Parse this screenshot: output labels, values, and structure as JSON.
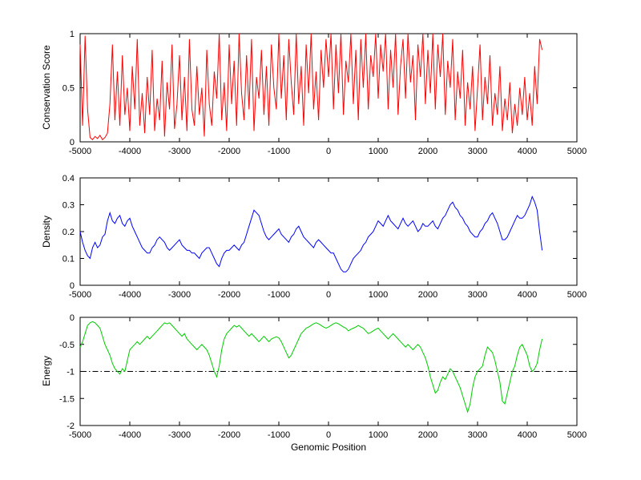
{
  "figure": {
    "background": "#ffffff",
    "xlabel": "Genomic Position"
  },
  "chart_data": [
    {
      "type": "line",
      "name": "conservation-score",
      "title": "",
      "ylabel": "Conservation Score",
      "xlabel": "",
      "xlim": [
        -5000,
        5000
      ],
      "ylim": [
        0,
        1
      ],
      "xticks": [
        -5000,
        -4000,
        -3000,
        -2000,
        -1000,
        0,
        1000,
        2000,
        3000,
        4000,
        5000
      ],
      "yticks": [
        0,
        0.5,
        1
      ],
      "line_color": "#ff0000",
      "x_start": -5000,
      "x_step": 50,
      "y": [
        0.9,
        0.15,
        0.98,
        0.3,
        0.04,
        0.02,
        0.05,
        0.03,
        0.06,
        0.02,
        0.04,
        0.08,
        0.35,
        0.9,
        0.2,
        0.65,
        0.15,
        0.8,
        0.25,
        0.5,
        0.1,
        0.7,
        0.3,
        0.95,
        0.15,
        0.45,
        0.08,
        0.6,
        0.25,
        0.85,
        0.1,
        0.4,
        0.2,
        0.75,
        0.05,
        0.55,
        0.3,
        0.9,
        0.12,
        0.35,
        0.8,
        0.2,
        0.6,
        0.1,
        0.95,
        0.3,
        0.15,
        0.7,
        0.25,
        0.5,
        0.05,
        0.85,
        0.35,
        0.15,
        0.65,
        0.4,
        1,
        0.2,
        0.55,
        0.1,
        0.9,
        0.35,
        0.75,
        0.15,
        1,
        0.45,
        0.2,
        0.8,
        0.3,
        0.95,
        0.1,
        0.6,
        0.4,
        0.85,
        0.25,
        0.7,
        0.15,
        0.9,
        0.5,
        0.3,
        1,
        0.4,
        0.8,
        0.2,
        0.95,
        0.55,
        0.25,
        1,
        0.35,
        0.7,
        0.15,
        0.9,
        0.45,
        1,
        0.3,
        0.65,
        0.2,
        0.85,
        0.5,
        0.95,
        0.6,
        1,
        0.3,
        0.9,
        0.45,
        1,
        0.25,
        0.75,
        0.55,
        1,
        0.35,
        0.85,
        0.2,
        0.95,
        0.5,
        1,
        0.3,
        0.8,
        0.6,
        1,
        0.4,
        0.9,
        0.65,
        1,
        0.3,
        0.85,
        0.5,
        1,
        0.25,
        0.7,
        0.95,
        0.4,
        1,
        0.55,
        0.8,
        0.2,
        0.9,
        0.6,
        1,
        0.35,
        0.85,
        0.45,
        1,
        0.3,
        0.9,
        0.6,
        1,
        0.25,
        0.75,
        0.5,
        0.95,
        0.2,
        0.65,
        0.4,
        0.85,
        0.15,
        0.55,
        0.3,
        0.7,
        0.1,
        0.5,
        0.9,
        0.2,
        0.6,
        0.35,
        0.8,
        0.15,
        0.45,
        0.25,
        0.7,
        0.1,
        0.4,
        0.2,
        0.55,
        0.08,
        0.35,
        0.15,
        0.5,
        0.25,
        0.6,
        0.2,
        0.45,
        0.15,
        0.7,
        0.35,
        0.95,
        0.85
      ]
    },
    {
      "type": "line",
      "name": "density",
      "title": "",
      "ylabel": "Density",
      "xlabel": "",
      "xlim": [
        -5000,
        5000
      ],
      "ylim": [
        0,
        0.4
      ],
      "xticks": [
        -5000,
        -4000,
        -3000,
        -2000,
        -1000,
        0,
        1000,
        2000,
        3000,
        4000,
        5000
      ],
      "yticks": [
        0,
        0.1,
        0.2,
        0.3,
        0.4
      ],
      "line_color": "#0000ff",
      "x_start": -5000,
      "x_step": 50,
      "y": [
        0.2,
        0.16,
        0.13,
        0.11,
        0.1,
        0.14,
        0.16,
        0.14,
        0.15,
        0.18,
        0.19,
        0.24,
        0.27,
        0.24,
        0.23,
        0.25,
        0.26,
        0.23,
        0.22,
        0.24,
        0.25,
        0.22,
        0.2,
        0.18,
        0.16,
        0.14,
        0.13,
        0.12,
        0.12,
        0.14,
        0.15,
        0.17,
        0.18,
        0.17,
        0.16,
        0.14,
        0.13,
        0.14,
        0.15,
        0.16,
        0.17,
        0.15,
        0.14,
        0.13,
        0.13,
        0.12,
        0.12,
        0.11,
        0.1,
        0.12,
        0.13,
        0.14,
        0.14,
        0.12,
        0.1,
        0.08,
        0.07,
        0.1,
        0.12,
        0.13,
        0.13,
        0.14,
        0.15,
        0.14,
        0.13,
        0.15,
        0.16,
        0.19,
        0.22,
        0.25,
        0.28,
        0.27,
        0.26,
        0.23,
        0.2,
        0.18,
        0.17,
        0.18,
        0.19,
        0.2,
        0.21,
        0.19,
        0.18,
        0.17,
        0.16,
        0.18,
        0.19,
        0.21,
        0.22,
        0.2,
        0.18,
        0.17,
        0.16,
        0.15,
        0.14,
        0.16,
        0.17,
        0.16,
        0.15,
        0.14,
        0.13,
        0.12,
        0.12,
        0.1,
        0.08,
        0.06,
        0.05,
        0.05,
        0.06,
        0.08,
        0.1,
        0.11,
        0.12,
        0.13,
        0.15,
        0.16,
        0.18,
        0.19,
        0.2,
        0.22,
        0.24,
        0.23,
        0.22,
        0.24,
        0.26,
        0.24,
        0.23,
        0.22,
        0.21,
        0.23,
        0.25,
        0.23,
        0.22,
        0.23,
        0.24,
        0.22,
        0.2,
        0.21,
        0.23,
        0.22,
        0.22,
        0.23,
        0.24,
        0.22,
        0.21,
        0.23,
        0.25,
        0.26,
        0.28,
        0.3,
        0.31,
        0.29,
        0.28,
        0.26,
        0.25,
        0.23,
        0.22,
        0.2,
        0.19,
        0.18,
        0.18,
        0.2,
        0.21,
        0.23,
        0.24,
        0.26,
        0.27,
        0.25,
        0.23,
        0.2,
        0.17,
        0.17,
        0.18,
        0.2,
        0.22,
        0.24,
        0.26,
        0.25,
        0.25,
        0.26,
        0.28,
        0.3,
        0.33,
        0.31,
        0.28,
        0.2,
        0.13
      ]
    },
    {
      "type": "line",
      "name": "energy",
      "title": "",
      "ylabel": "Energy",
      "xlabel": "Genomic Position",
      "xlim": [
        -5000,
        5000
      ],
      "ylim": [
        -2,
        0
      ],
      "xticks": [
        -5000,
        -4000,
        -3000,
        -2000,
        -1000,
        0,
        1000,
        2000,
        3000,
        4000,
        5000
      ],
      "yticks": [
        -2,
        -1.5,
        -1,
        -0.5,
        0
      ],
      "line_color": "#00cc00",
      "reference_line": {
        "y": -1,
        "style": "dash-dot",
        "color": "#000000"
      },
      "x_start": -5000,
      "x_step": 50,
      "y": [
        -0.55,
        -0.45,
        -0.3,
        -0.15,
        -0.1,
        -0.08,
        -0.1,
        -0.15,
        -0.2,
        -0.35,
        -0.5,
        -0.6,
        -0.7,
        -0.85,
        -0.95,
        -1.0,
        -1.05,
        -0.95,
        -1.0,
        -0.8,
        -0.6,
        -0.55,
        -0.5,
        -0.45,
        -0.5,
        -0.45,
        -0.4,
        -0.35,
        -0.4,
        -0.35,
        -0.3,
        -0.25,
        -0.2,
        -0.15,
        -0.1,
        -0.12,
        -0.1,
        -0.15,
        -0.2,
        -0.25,
        -0.3,
        -0.35,
        -0.3,
        -0.4,
        -0.45,
        -0.5,
        -0.55,
        -0.6,
        -0.55,
        -0.5,
        -0.55,
        -0.6,
        -0.7,
        -0.85,
        -1.0,
        -1.1,
        -0.9,
        -0.6,
        -0.4,
        -0.3,
        -0.25,
        -0.2,
        -0.15,
        -0.18,
        -0.15,
        -0.2,
        -0.25,
        -0.3,
        -0.35,
        -0.3,
        -0.35,
        -0.4,
        -0.45,
        -0.4,
        -0.35,
        -0.4,
        -0.45,
        -0.4,
        -0.38,
        -0.36,
        -0.38,
        -0.45,
        -0.55,
        -0.65,
        -0.75,
        -0.7,
        -0.6,
        -0.5,
        -0.4,
        -0.3,
        -0.25,
        -0.2,
        -0.18,
        -0.15,
        -0.12,
        -0.1,
        -0.12,
        -0.15,
        -0.18,
        -0.2,
        -0.18,
        -0.15,
        -0.12,
        -0.1,
        -0.12,
        -0.15,
        -0.18,
        -0.2,
        -0.25,
        -0.22,
        -0.2,
        -0.18,
        -0.15,
        -0.18,
        -0.2,
        -0.25,
        -0.3,
        -0.28,
        -0.25,
        -0.22,
        -0.2,
        -0.25,
        -0.3,
        -0.35,
        -0.4,
        -0.35,
        -0.3,
        -0.35,
        -0.4,
        -0.45,
        -0.5,
        -0.55,
        -0.5,
        -0.55,
        -0.6,
        -0.55,
        -0.5,
        -0.55,
        -0.65,
        -0.75,
        -0.9,
        -1.1,
        -1.25,
        -1.4,
        -1.35,
        -1.2,
        -1.1,
        -1.15,
        -1.05,
        -0.95,
        -1.0,
        -1.1,
        -1.2,
        -1.3,
        -1.45,
        -1.6,
        -1.75,
        -1.6,
        -1.3,
        -1.1,
        -1.0,
        -0.95,
        -0.9,
        -0.7,
        -0.55,
        -0.6,
        -0.65,
        -0.8,
        -1.0,
        -1.2,
        -1.55,
        -1.6,
        -1.4,
        -1.2,
        -1.0,
        -0.9,
        -0.7,
        -0.55,
        -0.5,
        -0.6,
        -0.7,
        -0.9,
        -1.0,
        -0.95,
        -0.85,
        -0.6,
        -0.4
      ]
    }
  ]
}
